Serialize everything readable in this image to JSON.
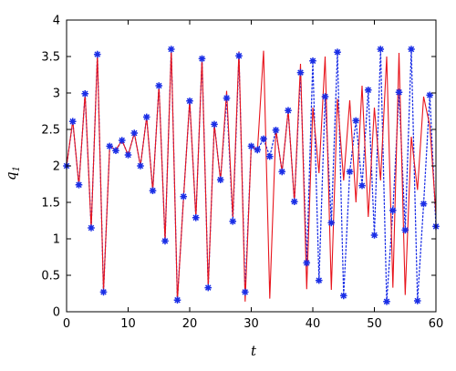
{
  "chart_data": {
    "type": "line",
    "title": "",
    "xlabel": "t",
    "ylabel": "q",
    "ylabel_subscript": "1",
    "xlim": [
      0,
      60
    ],
    "ylim": [
      0,
      4
    ],
    "xticks": [
      0,
      10,
      20,
      30,
      40,
      50,
      60
    ],
    "yticks": [
      0,
      0.5,
      1,
      1.5,
      2,
      2.5,
      3,
      3.5,
      4
    ],
    "grid": false,
    "legend": false,
    "series": [
      {
        "style": "solid-line",
        "color": "#e8141c",
        "x": [
          0,
          1,
          2,
          3,
          4,
          5,
          6,
          7,
          8,
          9,
          10,
          11,
          12,
          13,
          14,
          15,
          16,
          17,
          18,
          19,
          20,
          21,
          22,
          23,
          24,
          25,
          26,
          27,
          28,
          29,
          30,
          31,
          32,
          33,
          34,
          35,
          36,
          37,
          38,
          39,
          40,
          41,
          42,
          43,
          44,
          45,
          46,
          47,
          48,
          49,
          50,
          51,
          52,
          53,
          54,
          55,
          56,
          57,
          58,
          59,
          60
        ],
        "y": [
          2.0,
          2.62,
          1.73,
          3.0,
          1.14,
          3.53,
          0.27,
          2.27,
          2.22,
          2.35,
          2.15,
          2.45,
          2.0,
          2.67,
          1.66,
          3.1,
          0.97,
          3.6,
          0.15,
          1.57,
          2.9,
          1.29,
          3.47,
          0.33,
          2.57,
          1.8,
          3.03,
          1.3,
          3.57,
          0.14,
          2.28,
          2.21,
          3.58,
          0.18,
          2.5,
          1.92,
          2.76,
          1.51,
          3.4,
          0.31,
          2.8,
          1.9,
          3.5,
          0.3,
          2.92,
          1.8,
          2.9,
          1.5,
          3.1,
          1.3,
          2.8,
          1.8,
          3.5,
          0.33,
          3.55,
          0.23,
          2.4,
          1.67,
          2.95,
          2.55,
          1.34
        ]
      },
      {
        "style": "dotted-line-with-star-markers",
        "color": "#1a2ee6",
        "x": [
          0,
          1,
          2,
          3,
          4,
          5,
          6,
          7,
          8,
          9,
          10,
          11,
          12,
          13,
          14,
          15,
          16,
          17,
          18,
          19,
          20,
          21,
          22,
          23,
          24,
          25,
          26,
          27,
          28,
          29,
          30,
          31,
          32,
          33,
          34,
          35,
          36,
          37,
          38,
          39,
          40,
          41,
          42,
          43,
          44,
          45,
          46,
          47,
          48,
          49,
          50,
          51,
          52,
          53,
          54,
          55,
          56,
          57,
          58,
          59,
          60
        ],
        "y": [
          2.0,
          2.61,
          1.74,
          2.99,
          1.15,
          3.53,
          0.27,
          2.27,
          2.21,
          2.35,
          2.15,
          2.45,
          2.0,
          2.67,
          1.66,
          3.1,
          0.97,
          3.6,
          0.16,
          1.58,
          2.89,
          1.29,
          3.47,
          0.33,
          2.57,
          1.81,
          2.93,
          1.24,
          3.51,
          0.27,
          2.27,
          2.22,
          2.37,
          2.13,
          2.49,
          1.92,
          2.76,
          1.51,
          3.28,
          0.67,
          3.44,
          0.43,
          2.95,
          1.22,
          3.56,
          0.22,
          1.92,
          2.62,
          1.73,
          3.04,
          1.05,
          3.6,
          0.14,
          1.39,
          3.01,
          1.12,
          3.6,
          0.15,
          1.48,
          2.97,
          1.17
        ]
      }
    ]
  }
}
